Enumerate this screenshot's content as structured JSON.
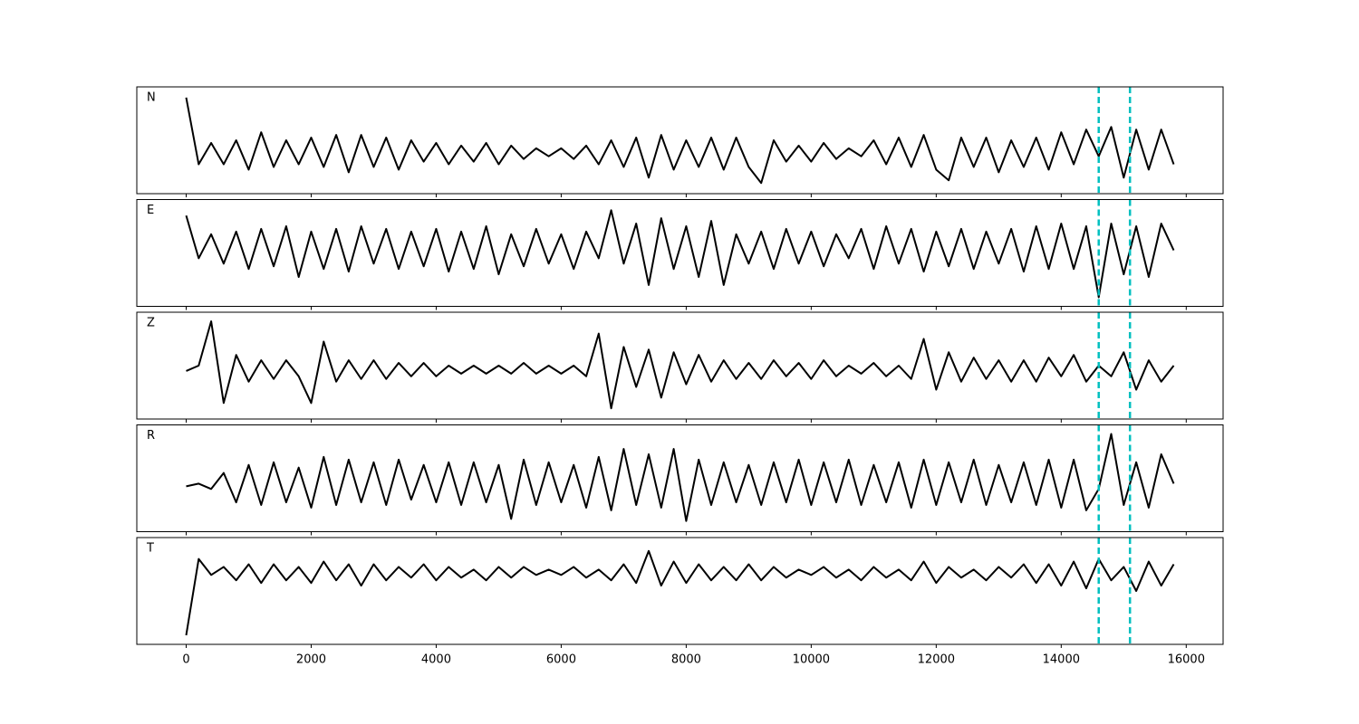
{
  "chart_data": [
    {
      "type": "line",
      "label": "N",
      "x": [
        0,
        200,
        400,
        600,
        800,
        1000,
        1200,
        1400,
        1600,
        1800,
        2000,
        2200,
        2400,
        2600,
        2800,
        3000,
        3200,
        3400,
        3600,
        3800,
        4000,
        4200,
        4400,
        4600,
        4800,
        5000,
        5200,
        5400,
        5600,
        5800,
        6000,
        6200,
        6400,
        6600,
        6800,
        7000,
        7200,
        7400,
        7600,
        7800,
        8000,
        8200,
        8400,
        8600,
        8800,
        9000,
        9200,
        9400,
        9600,
        9800,
        10000,
        10200,
        10400,
        10600,
        10800,
        11000,
        11200,
        11400,
        11600,
        11800,
        12000,
        12200,
        12400,
        12600,
        12800,
        13000,
        13200,
        13400,
        13600,
        13800,
        14000,
        14200,
        14400,
        14600,
        14800,
        15000,
        15200,
        15400,
        15600,
        15800
      ],
      "series": [
        {
          "color": "#000000",
          "values": [
            0.8,
            -0.45,
            -0.05,
            -0.45,
            0.0,
            -0.55,
            0.15,
            -0.5,
            0.0,
            -0.45,
            0.05,
            -0.5,
            0.1,
            -0.6,
            0.1,
            -0.5,
            0.05,
            -0.55,
            0.0,
            -0.4,
            -0.05,
            -0.45,
            -0.1,
            -0.4,
            -0.05,
            -0.45,
            -0.1,
            -0.35,
            -0.15,
            -0.3,
            -0.15,
            -0.35,
            -0.1,
            -0.45,
            0.0,
            -0.5,
            0.05,
            -0.7,
            0.1,
            -0.55,
            0.0,
            -0.5,
            0.05,
            -0.55,
            0.05,
            -0.5,
            -0.8,
            0.0,
            -0.4,
            -0.1,
            -0.4,
            -0.05,
            -0.35,
            -0.15,
            -0.3,
            0.0,
            -0.45,
            0.05,
            -0.5,
            0.1,
            -0.55,
            -0.75,
            0.05,
            -0.5,
            0.05,
            -0.6,
            0.0,
            -0.5,
            0.05,
            -0.55,
            0.15,
            -0.45,
            0.2,
            -0.3,
            0.25,
            -0.7,
            0.2,
            -0.55,
            0.2,
            -0.45
          ]
        }
      ],
      "xlim": [
        -790,
        16590
      ],
      "ylim": [
        -1,
        1
      ],
      "vlines": [
        14600,
        15100
      ],
      "vline_color": "#00bfbf"
    },
    {
      "type": "line",
      "label": "E",
      "x": [
        0,
        200,
        400,
        600,
        800,
        1000,
        1200,
        1400,
        1600,
        1800,
        2000,
        2200,
        2400,
        2600,
        2800,
        3000,
        3200,
        3400,
        3600,
        3800,
        4000,
        4200,
        4400,
        4600,
        4800,
        5000,
        5200,
        5400,
        5600,
        5800,
        6000,
        6200,
        6400,
        6600,
        6800,
        7000,
        7200,
        7400,
        7600,
        7800,
        8000,
        8200,
        8400,
        8600,
        8800,
        9000,
        9200,
        9400,
        9600,
        9800,
        10000,
        10200,
        10400,
        10600,
        10800,
        11000,
        11200,
        11400,
        11600,
        11800,
        12000,
        12200,
        12400,
        12600,
        12800,
        13000,
        13200,
        13400,
        13600,
        13800,
        14000,
        14200,
        14400,
        14600,
        14800,
        15000,
        15200,
        15400,
        15600,
        15800
      ],
      "series": [
        {
          "color": "#000000",
          "values": [
            0.7,
            -0.1,
            0.35,
            -0.2,
            0.4,
            -0.3,
            0.45,
            -0.25,
            0.5,
            -0.45,
            0.4,
            -0.3,
            0.45,
            -0.35,
            0.5,
            -0.2,
            0.45,
            -0.3,
            0.4,
            -0.25,
            0.45,
            -0.35,
            0.4,
            -0.3,
            0.5,
            -0.4,
            0.35,
            -0.25,
            0.45,
            -0.2,
            0.35,
            -0.3,
            0.4,
            -0.1,
            0.8,
            -0.2,
            0.55,
            -0.6,
            0.65,
            -0.3,
            0.5,
            -0.45,
            0.6,
            -0.6,
            0.35,
            -0.2,
            0.4,
            -0.3,
            0.45,
            -0.2,
            0.4,
            -0.25,
            0.35,
            -0.1,
            0.45,
            -0.3,
            0.5,
            -0.2,
            0.45,
            -0.35,
            0.4,
            -0.25,
            0.45,
            -0.3,
            0.4,
            -0.2,
            0.45,
            -0.35,
            0.5,
            -0.3,
            0.55,
            -0.3,
            0.5,
            -0.83,
            0.55,
            -0.4,
            0.5,
            -0.45,
            0.55,
            0.05
          ]
        }
      ],
      "xlim": [
        -790,
        16590
      ],
      "ylim": [
        -1,
        1
      ],
      "vlines": [
        14600,
        15100
      ],
      "vline_color": "#00bfbf"
    },
    {
      "type": "line",
      "label": "Z",
      "x": [
        0,
        200,
        400,
        600,
        800,
        1000,
        1200,
        1400,
        1600,
        1800,
        2000,
        2200,
        2400,
        2600,
        2800,
        3000,
        3200,
        3400,
        3600,
        3800,
        4000,
        4200,
        4400,
        4600,
        4800,
        5000,
        5200,
        5400,
        5600,
        5800,
        6000,
        6200,
        6400,
        6600,
        6800,
        7000,
        7200,
        7400,
        7600,
        7800,
        8000,
        8200,
        8400,
        8600,
        8800,
        9000,
        9200,
        9400,
        9600,
        9800,
        10000,
        10200,
        10400,
        10600,
        10800,
        11000,
        11200,
        11400,
        11600,
        11800,
        12000,
        12200,
        12400,
        12600,
        12800,
        13000,
        13200,
        13400,
        13600,
        13800,
        14000,
        14200,
        14400,
        14600,
        14800,
        15000,
        15200,
        15400,
        15600,
        15800
      ],
      "series": [
        {
          "color": "#000000",
          "values": [
            -0.1,
            0.0,
            0.83,
            -0.7,
            0.2,
            -0.3,
            0.1,
            -0.25,
            0.1,
            -0.2,
            -0.7,
            0.45,
            -0.3,
            0.1,
            -0.25,
            0.1,
            -0.25,
            0.05,
            -0.2,
            0.05,
            -0.2,
            0.0,
            -0.15,
            0.0,
            -0.15,
            0.0,
            -0.15,
            0.05,
            -0.15,
            0.0,
            -0.15,
            0.0,
            -0.2,
            0.6,
            -0.8,
            0.35,
            -0.4,
            0.3,
            -0.6,
            0.25,
            -0.35,
            0.2,
            -0.3,
            0.1,
            -0.25,
            0.05,
            -0.25,
            0.1,
            -0.2,
            0.05,
            -0.25,
            0.1,
            -0.2,
            0.0,
            -0.15,
            0.05,
            -0.2,
            0.0,
            -0.25,
            0.5,
            -0.45,
            0.25,
            -0.3,
            0.15,
            -0.25,
            0.1,
            -0.3,
            0.1,
            -0.3,
            0.15,
            -0.2,
            0.2,
            -0.3,
            0.0,
            -0.2,
            0.25,
            -0.45,
            0.1,
            -0.3,
            0.0
          ]
        }
      ],
      "xlim": [
        -790,
        16590
      ],
      "ylim": [
        -1,
        1
      ],
      "vlines": [
        14600,
        15100
      ],
      "vline_color": "#00bfbf"
    },
    {
      "type": "line",
      "label": "R",
      "x": [
        0,
        200,
        400,
        600,
        800,
        1000,
        1200,
        1400,
        1600,
        1800,
        2000,
        2200,
        2400,
        2600,
        2800,
        3000,
        3200,
        3400,
        3600,
        3800,
        4000,
        4200,
        4400,
        4600,
        4800,
        5000,
        5200,
        5400,
        5600,
        5800,
        6000,
        6200,
        6400,
        6600,
        6800,
        7000,
        7200,
        7400,
        7600,
        7800,
        8000,
        8200,
        8400,
        8600,
        8800,
        9000,
        9200,
        9400,
        9600,
        9800,
        10000,
        10200,
        10400,
        10600,
        10800,
        11000,
        11200,
        11400,
        11600,
        11800,
        12000,
        12200,
        12400,
        12600,
        12800,
        13000,
        13200,
        13400,
        13600,
        13800,
        14000,
        14200,
        14400,
        14600,
        14800,
        15000,
        15200,
        15400,
        15600,
        15800
      ],
      "series": [
        {
          "color": "#000000",
          "values": [
            -0.15,
            -0.1,
            -0.2,
            0.1,
            -0.45,
            0.25,
            -0.5,
            0.3,
            -0.45,
            0.2,
            -0.55,
            0.4,
            -0.5,
            0.35,
            -0.45,
            0.3,
            -0.5,
            0.35,
            -0.4,
            0.25,
            -0.45,
            0.3,
            -0.5,
            0.3,
            -0.45,
            0.25,
            -0.76,
            0.35,
            -0.5,
            0.3,
            -0.45,
            0.25,
            -0.55,
            0.4,
            -0.6,
            0.55,
            -0.5,
            0.45,
            -0.55,
            0.55,
            -0.8,
            0.35,
            -0.5,
            0.3,
            -0.45,
            0.25,
            -0.5,
            0.3,
            -0.45,
            0.35,
            -0.5,
            0.3,
            -0.45,
            0.35,
            -0.5,
            0.25,
            -0.45,
            0.3,
            -0.55,
            0.35,
            -0.5,
            0.3,
            -0.45,
            0.35,
            -0.5,
            0.25,
            -0.45,
            0.3,
            -0.5,
            0.35,
            -0.55,
            0.35,
            -0.6,
            -0.2,
            0.83,
            -0.5,
            0.3,
            -0.55,
            0.45,
            -0.1
          ]
        }
      ],
      "xlim": [
        -790,
        16590
      ],
      "ylim": [
        -1,
        1
      ],
      "vlines": [
        14600,
        15100
      ],
      "vline_color": "#00bfbf"
    },
    {
      "type": "line",
      "label": "T",
      "x": [
        0,
        200,
        400,
        600,
        800,
        1000,
        1200,
        1400,
        1600,
        1800,
        2000,
        2200,
        2400,
        2600,
        2800,
        3000,
        3200,
        3400,
        3600,
        3800,
        4000,
        4200,
        4400,
        4600,
        4800,
        5000,
        5200,
        5400,
        5600,
        5800,
        6000,
        6200,
        6400,
        6600,
        6800,
        7000,
        7200,
        7400,
        7600,
        7800,
        8000,
        8200,
        8400,
        8600,
        8800,
        9000,
        9200,
        9400,
        9600,
        9800,
        10000,
        10200,
        10400,
        10600,
        10800,
        11000,
        11200,
        11400,
        11600,
        11800,
        12000,
        12200,
        12400,
        12600,
        12800,
        13000,
        13200,
        13400,
        13600,
        13800,
        14000,
        14200,
        14400,
        14600,
        14800,
        15000,
        15200,
        15400,
        15600,
        15800
      ],
      "series": [
        {
          "color": "#000000",
          "values": [
            -0.83,
            0.6,
            0.3,
            0.45,
            0.2,
            0.5,
            0.15,
            0.5,
            0.2,
            0.45,
            0.15,
            0.55,
            0.2,
            0.5,
            0.1,
            0.5,
            0.2,
            0.45,
            0.25,
            0.5,
            0.2,
            0.45,
            0.25,
            0.4,
            0.2,
            0.45,
            0.25,
            0.45,
            0.3,
            0.4,
            0.3,
            0.45,
            0.25,
            0.4,
            0.2,
            0.5,
            0.15,
            0.75,
            0.1,
            0.55,
            0.15,
            0.5,
            0.2,
            0.45,
            0.2,
            0.5,
            0.2,
            0.45,
            0.25,
            0.4,
            0.3,
            0.45,
            0.25,
            0.4,
            0.2,
            0.45,
            0.25,
            0.4,
            0.2,
            0.55,
            0.15,
            0.45,
            0.25,
            0.4,
            0.2,
            0.45,
            0.25,
            0.5,
            0.15,
            0.5,
            0.1,
            0.55,
            0.05,
            0.6,
            0.2,
            0.45,
            0.0,
            0.55,
            0.1,
            0.5
          ]
        }
      ],
      "xlim": [
        -790,
        16590
      ],
      "ylim": [
        -1,
        1
      ],
      "vlines": [
        14600,
        15100
      ],
      "vline_color": "#00bfbf",
      "xticks": [
        0,
        2000,
        4000,
        6000,
        8000,
        10000,
        12000,
        14000,
        16000
      ]
    }
  ]
}
